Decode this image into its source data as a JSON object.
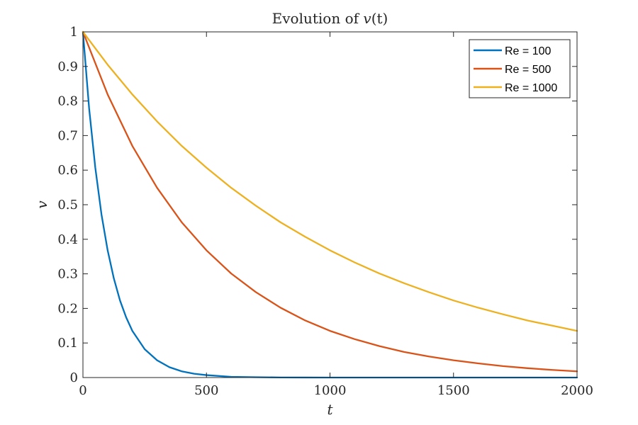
{
  "chart_data": {
    "type": "line",
    "title": {
      "prefix": "Evolution of ",
      "var": "v",
      "suffix": "(t)"
    },
    "xlabel": "t",
    "ylabel": "v",
    "xlim": [
      0,
      2000
    ],
    "ylim": [
      0,
      1
    ],
    "xticks": [
      0,
      500,
      1000,
      1500,
      2000
    ],
    "xtick_labels": [
      "0",
      "500",
      "1000",
      "1500",
      "2000"
    ],
    "yticks": [
      0,
      0.1,
      0.2,
      0.3,
      0.4,
      0.5,
      0.6,
      0.7,
      0.8,
      0.9,
      1
    ],
    "ytick_labels": [
      "0",
      "0.1",
      "0.2",
      "0.3",
      "0.4",
      "0.5",
      "0.6",
      "0.7",
      "0.8",
      "0.9",
      "1"
    ],
    "grid": false,
    "legend_position": "top-right",
    "series": [
      {
        "name": "Re = 100",
        "color": "#0072BD",
        "x": [
          0,
          25,
          50,
          75,
          100,
          125,
          150,
          175,
          200,
          250,
          300,
          350,
          400,
          450,
          500,
          600,
          700,
          800,
          900,
          1000,
          1250,
          1500,
          1750,
          2000
        ],
        "y": [
          1,
          0.779,
          0.607,
          0.472,
          0.368,
          0.287,
          0.223,
          0.174,
          0.135,
          0.082,
          0.05,
          0.03,
          0.018,
          0.011,
          0.007,
          0.002,
          0.001,
          0.0003,
          0.0001,
          5e-05,
          0,
          0,
          0,
          0
        ]
      },
      {
        "name": "Re = 500",
        "color": "#D95319",
        "x": [
          0,
          100,
          200,
          300,
          400,
          500,
          600,
          700,
          800,
          900,
          1000,
          1100,
          1200,
          1300,
          1400,
          1500,
          1600,
          1700,
          1800,
          1900,
          2000
        ],
        "y": [
          1,
          0.819,
          0.67,
          0.549,
          0.449,
          0.368,
          0.301,
          0.247,
          0.202,
          0.165,
          0.135,
          0.111,
          0.091,
          0.074,
          0.061,
          0.05,
          0.041,
          0.033,
          0.027,
          0.022,
          0.018
        ]
      },
      {
        "name": "Re = 1000",
        "color": "#EDB120",
        "x": [
          0,
          100,
          200,
          300,
          400,
          500,
          600,
          700,
          800,
          900,
          1000,
          1100,
          1200,
          1300,
          1400,
          1500,
          1600,
          1700,
          1800,
          1900,
          2000
        ],
        "y": [
          1,
          0.905,
          0.819,
          0.741,
          0.67,
          0.607,
          0.549,
          0.497,
          0.449,
          0.407,
          0.368,
          0.333,
          0.301,
          0.273,
          0.247,
          0.223,
          0.202,
          0.183,
          0.165,
          0.15,
          0.135
        ]
      }
    ]
  }
}
